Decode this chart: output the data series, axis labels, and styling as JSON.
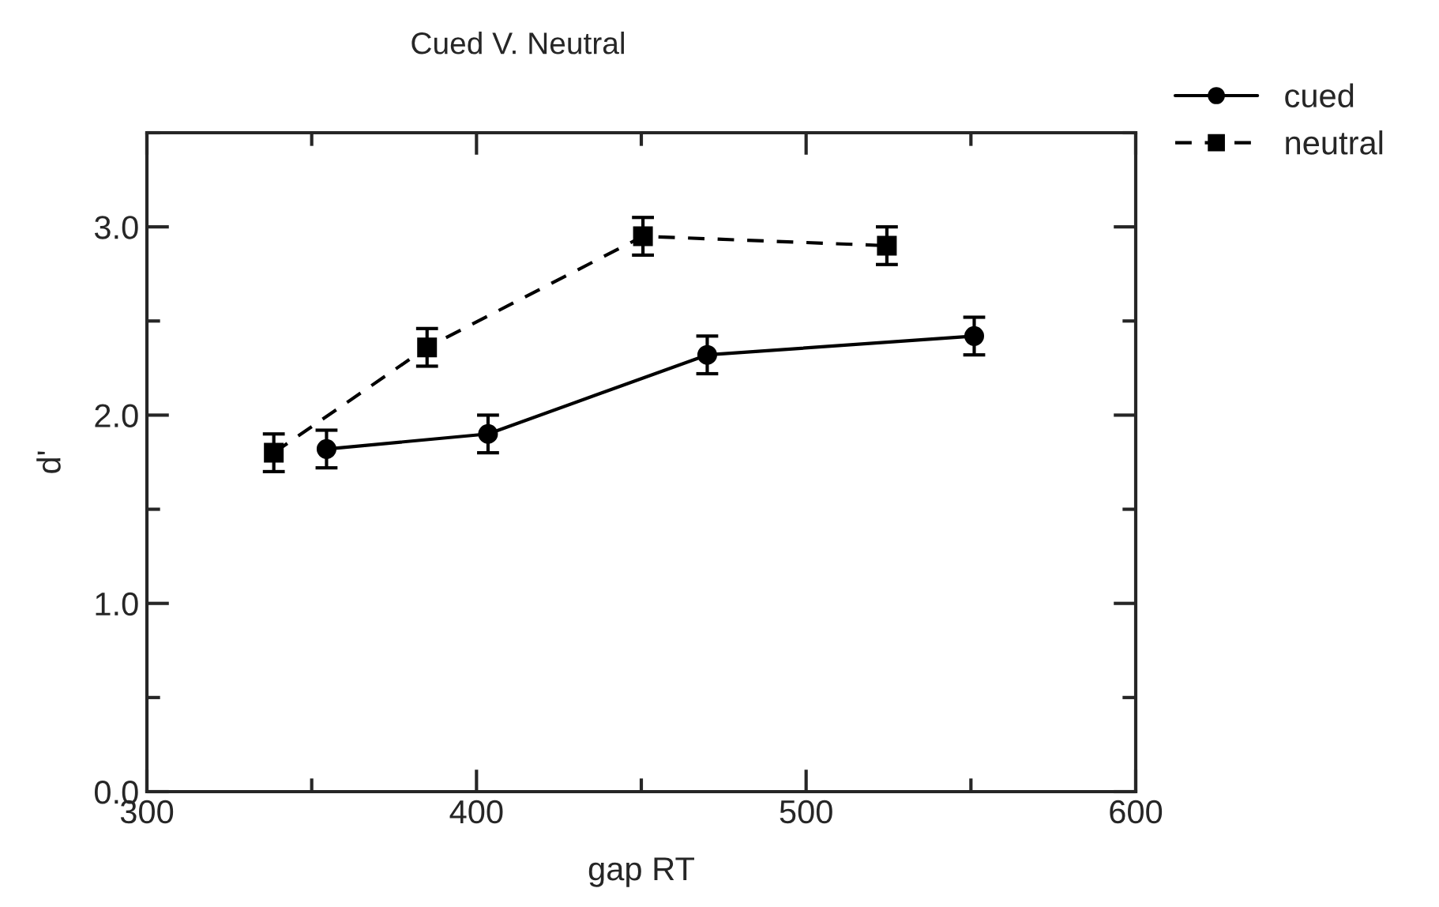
{
  "chart_data": {
    "type": "line",
    "title": "Cued V. Neutral",
    "xlabel": "gap RT",
    "ylabel": "d'",
    "series": [
      {
        "name": "cued",
        "color": "#000000",
        "marker": "circle",
        "line_style": "solid",
        "x": [
          354.5,
          403.5,
          470,
          551
        ],
        "values": [
          1.82,
          1.9,
          2.32,
          2.42
        ],
        "errors": [
          0.1,
          0.1,
          0.1,
          0.1
        ]
      },
      {
        "name": "neutral",
        "color": "#000000",
        "marker": "square",
        "line_style": "dashed",
        "x": [
          338.5,
          385,
          450.5,
          524.5
        ],
        "values": [
          1.8,
          2.36,
          2.95,
          2.9
        ],
        "errors": [
          0.1,
          0.1,
          0.1,
          0.1
        ]
      }
    ],
    "xlim": [
      300,
      600
    ],
    "xticks": [
      300,
      400,
      500,
      600
    ],
    "ylim": [
      0,
      3.5
    ],
    "yticks": [
      {
        "value": 0,
        "label": "0.0"
      },
      {
        "value": 1,
        "label": "1.0"
      },
      {
        "value": 2,
        "label": "2.0"
      },
      {
        "value": 3,
        "label": "3.0"
      }
    ],
    "grid": false,
    "legend": "top right"
  }
}
